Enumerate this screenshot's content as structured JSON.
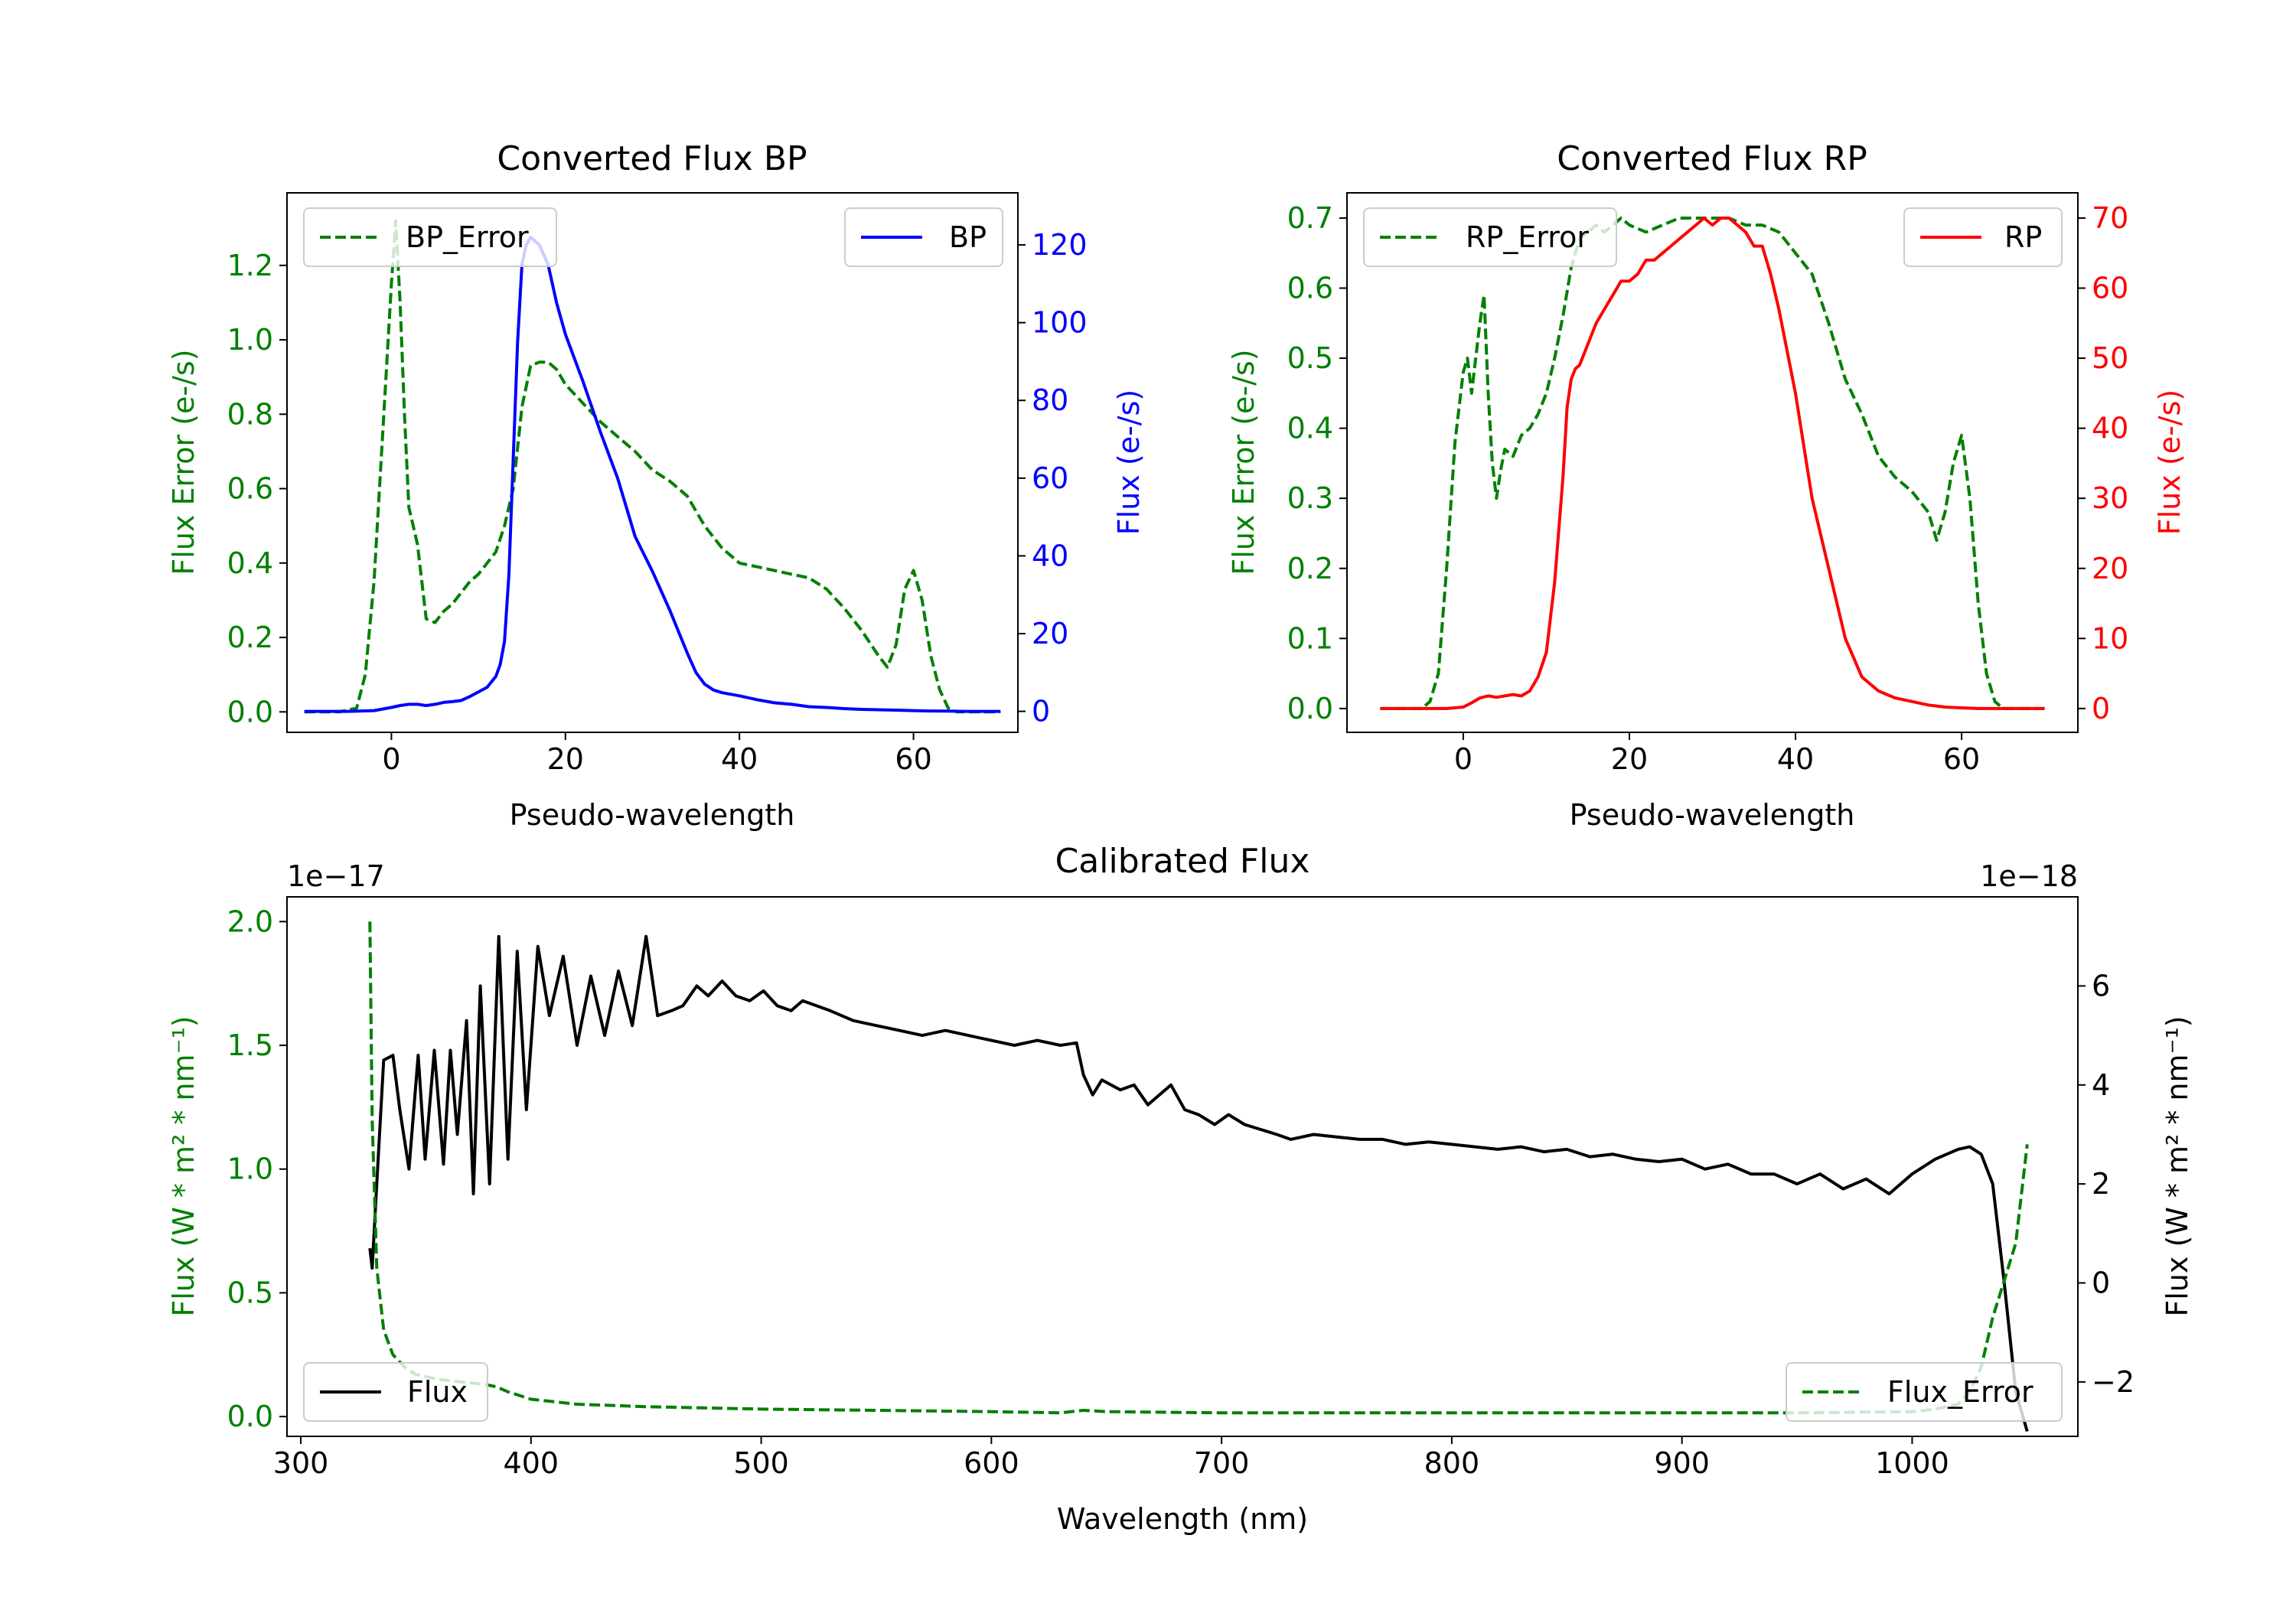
{
  "colors": {
    "error": "#008000",
    "bp": "#0000ff",
    "rp": "#ff0000",
    "flux": "#000000",
    "axis": "#000000"
  },
  "chart_data": [
    {
      "id": "bp",
      "type": "line",
      "title": "Converted Flux BP",
      "xlabel": "Pseudo-wavelength",
      "ylabel_left": "Flux Error (e-/s)",
      "ylabel_right": "Flux (e-/s)",
      "xlim": [
        -12,
        72
      ],
      "ylim_left": [
        -0.055,
        1.395
      ],
      "ylim_right": [
        -5.4,
        133.4
      ],
      "xticks": [
        0,
        20,
        40,
        60
      ],
      "xtick_labels": [
        "0",
        "20",
        "40",
        "60"
      ],
      "yticks_left": [
        0.0,
        0.2,
        0.4,
        0.6,
        0.8,
        1.0,
        1.2
      ],
      "ytick_labels_left": [
        "0.0",
        "0.2",
        "0.4",
        "0.6",
        "0.8",
        "1.0",
        "1.2"
      ],
      "yticks_right": [
        0,
        20,
        40,
        60,
        80,
        100,
        120
      ],
      "ytick_labels_right": [
        "0",
        "20",
        "40",
        "60",
        "80",
        "100",
        "120"
      ],
      "legend_left": {
        "label": "BP_Error",
        "placement": "upper left"
      },
      "legend_right": {
        "label": "BP",
        "placement": "upper right"
      },
      "series": [
        {
          "name": "BP_Error",
          "axis": "left",
          "style": "dashed",
          "color": "#008000",
          "x": [
            -10,
            -6,
            -4,
            -3,
            -2,
            -1,
            0,
            0.5,
            1,
            1.5,
            2,
            2.5,
            3,
            3.5,
            4,
            5,
            6,
            7,
            8,
            9,
            10,
            11,
            12,
            13,
            14,
            15,
            16,
            17,
            18,
            19,
            20,
            22,
            24,
            26,
            28,
            30,
            32,
            34,
            36,
            38,
            40,
            42,
            44,
            46,
            48,
            50,
            52,
            54,
            56,
            57,
            58,
            59,
            60,
            61,
            62,
            63,
            64,
            65,
            66,
            70
          ],
          "y": [
            0,
            0,
            0.01,
            0.1,
            0.35,
            0.75,
            1.15,
            1.32,
            1.1,
            0.8,
            0.55,
            0.5,
            0.45,
            0.35,
            0.25,
            0.24,
            0.27,
            0.29,
            0.32,
            0.35,
            0.37,
            0.4,
            0.43,
            0.5,
            0.6,
            0.82,
            0.93,
            0.94,
            0.94,
            0.92,
            0.88,
            0.83,
            0.78,
            0.74,
            0.7,
            0.65,
            0.62,
            0.58,
            0.5,
            0.44,
            0.4,
            0.39,
            0.38,
            0.37,
            0.36,
            0.33,
            0.28,
            0.22,
            0.15,
            0.12,
            0.18,
            0.33,
            0.38,
            0.3,
            0.15,
            0.06,
            0.01,
            0,
            0,
            0
          ]
        },
        {
          "name": "BP",
          "axis": "right",
          "style": "solid",
          "color": "#0000ff",
          "x": [
            -10,
            -5,
            -2,
            0,
            1,
            2,
            3,
            4,
            5,
            6,
            7,
            8,
            9,
            10,
            11,
            12,
            12.5,
            13,
            13.5,
            14,
            14.5,
            15,
            15.5,
            16,
            17,
            18,
            19,
            20,
            22,
            24,
            26,
            28,
            30,
            32,
            34,
            35,
            36,
            37,
            38,
            40,
            42,
            44,
            46,
            48,
            50,
            52,
            54,
            56,
            58,
            60,
            62,
            64,
            66,
            70
          ],
          "y": [
            0,
            0,
            0.2,
            1,
            1.5,
            1.8,
            1.8,
            1.5,
            1.8,
            2.3,
            2.5,
            2.8,
            3.8,
            5,
            6.2,
            9,
            12,
            18,
            35,
            65,
            95,
            115,
            120,
            122,
            120,
            115,
            105,
            97,
            85,
            72,
            60,
            45,
            36,
            26,
            15,
            10,
            7,
            5.5,
            4.8,
            4,
            3,
            2.2,
            1.8,
            1.2,
            1,
            0.7,
            0.5,
            0.4,
            0.3,
            0.2,
            0.1,
            0.05,
            0,
            0
          ]
        }
      ]
    },
    {
      "id": "rp",
      "type": "line",
      "title": "Converted Flux RP",
      "xlabel": "Pseudo-wavelength",
      "ylabel_left": "Flux Error (e-/s)",
      "ylabel_right": "Flux (e-/s)",
      "xlim": [
        -14,
        74
      ],
      "ylim_left": [
        -0.034,
        0.736
      ],
      "ylim_right": [
        -3.4,
        73.6
      ],
      "xticks": [
        0,
        20,
        40,
        60
      ],
      "xtick_labels": [
        "0",
        "20",
        "40",
        "60"
      ],
      "yticks_left": [
        0.0,
        0.1,
        0.2,
        0.3,
        0.4,
        0.5,
        0.6,
        0.7
      ],
      "ytick_labels_left": [
        "0.0",
        "0.1",
        "0.2",
        "0.3",
        "0.4",
        "0.5",
        "0.6",
        "0.7"
      ],
      "yticks_right": [
        0,
        10,
        20,
        30,
        40,
        50,
        60,
        70
      ],
      "ytick_labels_right": [
        "0",
        "10",
        "20",
        "30",
        "40",
        "50",
        "60",
        "70"
      ],
      "legend_left": {
        "label": "RP_Error",
        "placement": "upper left"
      },
      "legend_right": {
        "label": "RP",
        "placement": "upper right"
      },
      "series": [
        {
          "name": "RP_Error",
          "axis": "left",
          "style": "dashed",
          "color": "#008000",
          "x": [
            -10,
            -5,
            -4,
            -3,
            -2,
            -1,
            0,
            0.5,
            1,
            1.5,
            2,
            2.5,
            3,
            3.5,
            4,
            4.5,
            5,
            6,
            7,
            8,
            9,
            10,
            11,
            12,
            13,
            14,
            15,
            16,
            17,
            18,
            19,
            20,
            22,
            24,
            26,
            28,
            30,
            32,
            34,
            36,
            38,
            40,
            42,
            44,
            46,
            48,
            50,
            52,
            54,
            56,
            57,
            58,
            59,
            60,
            61,
            62,
            63,
            64,
            65,
            70
          ],
          "y": [
            0,
            0,
            0.01,
            0.05,
            0.2,
            0.38,
            0.48,
            0.5,
            0.45,
            0.5,
            0.55,
            0.59,
            0.45,
            0.35,
            0.3,
            0.34,
            0.37,
            0.36,
            0.39,
            0.4,
            0.42,
            0.45,
            0.5,
            0.56,
            0.63,
            0.67,
            0.68,
            0.69,
            0.68,
            0.69,
            0.7,
            0.69,
            0.68,
            0.69,
            0.7,
            0.7,
            0.7,
            0.7,
            0.69,
            0.69,
            0.68,
            0.65,
            0.62,
            0.55,
            0.47,
            0.42,
            0.36,
            0.33,
            0.31,
            0.28,
            0.24,
            0.28,
            0.35,
            0.39,
            0.3,
            0.15,
            0.05,
            0.01,
            0,
            0
          ]
        },
        {
          "name": "RP",
          "axis": "right",
          "style": "solid",
          "color": "#ff0000",
          "x": [
            -10,
            -2,
            0,
            1,
            2,
            3,
            4,
            5,
            6,
            7,
            8,
            9,
            10,
            11,
            12,
            12.5,
            13,
            13.5,
            14,
            15,
            16,
            17,
            18,
            19,
            20,
            21,
            22,
            23,
            24,
            25,
            26,
            27,
            28,
            29,
            30,
            31,
            32,
            33,
            34,
            35,
            36,
            37,
            38,
            40,
            42,
            44,
            46,
            48,
            50,
            52,
            54,
            56,
            58,
            60,
            62,
            64,
            66,
            70
          ],
          "y": [
            0,
            0,
            0.2,
            0.8,
            1.5,
            1.8,
            1.6,
            1.8,
            2,
            1.8,
            2.5,
            4.5,
            8,
            18,
            33,
            43,
            47,
            48.5,
            49,
            52,
            55,
            57,
            59,
            61,
            61,
            62,
            64,
            64,
            65,
            66,
            67,
            68,
            69,
            70,
            69,
            70,
            70,
            69,
            68,
            66,
            66,
            62,
            57,
            45,
            30,
            20,
            10,
            4.5,
            2.5,
            1.5,
            1,
            0.5,
            0.2,
            0.1,
            0,
            0,
            0,
            0
          ]
        }
      ]
    },
    {
      "id": "calibrated",
      "type": "line",
      "title": "Calibrated Flux",
      "xlabel": "Wavelength (nm)",
      "ylabel_left": "Flux (W * m² * nm⁻¹)",
      "ylabel_right": "Flux (W * m² * nm⁻¹)",
      "offset_left": "1e−17",
      "offset_right": "1e−18",
      "xlim": [
        294,
        1072
      ],
      "ylim_left": [
        -0.08,
        2.1
      ],
      "ylim_right": [
        -3.1,
        7.8
      ],
      "xticks": [
        300,
        400,
        500,
        600,
        700,
        800,
        900,
        1000
      ],
      "xtick_labels": [
        "300",
        "400",
        "500",
        "600",
        "700",
        "800",
        "900",
        "1000"
      ],
      "yticks_left": [
        0.0,
        0.5,
        1.0,
        1.5,
        2.0
      ],
      "ytick_labels_left": [
        "0.0",
        "0.5",
        "1.0",
        "1.5",
        "2.0"
      ],
      "yticks_right": [
        -2,
        0,
        2,
        4,
        6
      ],
      "ytick_labels_right": [
        "−2",
        "0",
        "2",
        "4",
        "6"
      ],
      "legend_left": {
        "label": "Flux",
        "placement": "lower left"
      },
      "legend_right": {
        "label": "Flux_Error",
        "placement": "lower right"
      },
      "series": [
        {
          "name": "Flux",
          "axis": "right",
          "style": "solid",
          "color": "#000000",
          "x": [
            330,
            331,
            333,
            336,
            340,
            343,
            347,
            351,
            354,
            358,
            362,
            365,
            368,
            372,
            375,
            378,
            382,
            386,
            390,
            394,
            398,
            403,
            408,
            414,
            420,
            426,
            432,
            438,
            444,
            450,
            455,
            461,
            466,
            472,
            477,
            483,
            489,
            495,
            501,
            507,
            513,
            518,
            524,
            530,
            540,
            550,
            560,
            570,
            580,
            590,
            600,
            610,
            620,
            630,
            637,
            640,
            644,
            648,
            652,
            656,
            662,
            668,
            673,
            678,
            684,
            690,
            697,
            703,
            710,
            717,
            724,
            730,
            740,
            750,
            760,
            770,
            780,
            790,
            800,
            810,
            820,
            830,
            840,
            850,
            860,
            870,
            880,
            890,
            900,
            910,
            920,
            930,
            940,
            950,
            960,
            970,
            980,
            990,
            1000,
            1010,
            1020,
            1025,
            1030,
            1035,
            1040,
            1045,
            1050
          ],
          "y": [
            0.7,
            0.3,
            2,
            4.5,
            4.6,
            3.5,
            2.3,
            4.6,
            2.5,
            4.7,
            2.4,
            4.7,
            3,
            5.3,
            1.8,
            6,
            2,
            7,
            2.5,
            6.7,
            3.5,
            6.8,
            5.4,
            6.6,
            4.8,
            6.2,
            5,
            6.3,
            5.2,
            7,
            5.4,
            5.5,
            5.6,
            6,
            5.8,
            6.1,
            5.8,
            5.7,
            5.9,
            5.6,
            5.5,
            5.7,
            5.6,
            5.5,
            5.3,
            5.2,
            5.1,
            5,
            5.1,
            5,
            4.9,
            4.8,
            4.9,
            4.8,
            4.85,
            4.2,
            3.8,
            4.1,
            4,
            3.9,
            4.0,
            3.6,
            3.8,
            4.0,
            3.5,
            3.4,
            3.2,
            3.4,
            3.2,
            3.1,
            3.0,
            2.9,
            3,
            2.95,
            2.9,
            2.9,
            2.8,
            2.85,
            2.8,
            2.75,
            2.7,
            2.75,
            2.65,
            2.7,
            2.55,
            2.6,
            2.5,
            2.45,
            2.5,
            2.3,
            2.4,
            2.2,
            2.2,
            2.0,
            2.2,
            1.9,
            2.1,
            1.8,
            2.2,
            2.5,
            2.7,
            2.75,
            2.6,
            2.0,
            0,
            -2.2,
            -3.0
          ]
        },
        {
          "name": "Flux_Error",
          "axis": "left",
          "style": "dashed",
          "color": "#008000",
          "x": [
            330,
            331,
            333,
            336,
            340,
            345,
            350,
            360,
            370,
            380,
            385,
            390,
            400,
            420,
            450,
            500,
            550,
            600,
            630,
            640,
            650,
            700,
            750,
            800,
            850,
            900,
            950,
            1000,
            1010,
            1020,
            1025,
            1030,
            1035,
            1040,
            1045,
            1050
          ],
          "y": [
            2.0,
            1.2,
            0.6,
            0.35,
            0.25,
            0.2,
            0.17,
            0.15,
            0.14,
            0.13,
            0.12,
            0.1,
            0.07,
            0.05,
            0.04,
            0.03,
            0.025,
            0.02,
            0.015,
            0.025,
            0.02,
            0.015,
            0.015,
            0.015,
            0.015,
            0.015,
            0.015,
            0.02,
            0.03,
            0.05,
            0.1,
            0.2,
            0.4,
            0.55,
            0.7,
            1.1
          ]
        }
      ]
    }
  ]
}
